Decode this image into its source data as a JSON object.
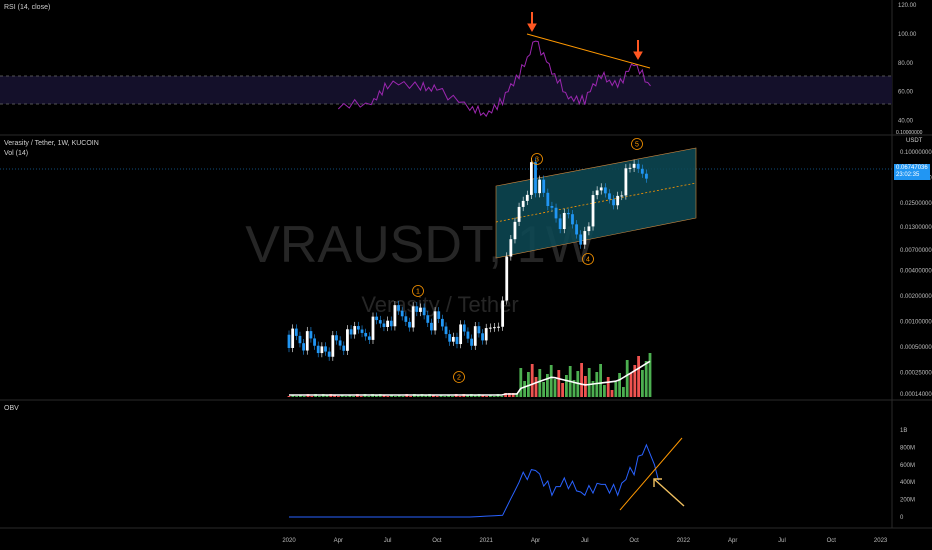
{
  "rsi_panel": {
    "label": "RSI (14, close)",
    "ticks": [
      "120.00",
      "100.00",
      "80.00",
      "60.00",
      "40.00"
    ]
  },
  "price_panel": {
    "title": "Verasity / Tether, 1W, KUCOIN",
    "vol_label": "Vol (14)",
    "watermark_symbol": "VRAUSDT, 1W",
    "watermark_name": "Verasity / Tether",
    "currency": "USDT",
    "top_tick": "0.10000000",
    "ticks": [
      "0.10000000",
      "0.05000000",
      "0.02500000",
      "0.01300000",
      "0.00700000",
      "0.00400000",
      "0.00200000",
      "0.00100000",
      "0.00050000",
      "0.00025000",
      "0.00014000"
    ],
    "price_tag": {
      "value": "0.06747036",
      "time": "23:02:35"
    },
    "wave_labels": [
      "1",
      "2",
      "3",
      "4",
      "5"
    ]
  },
  "obv_panel": {
    "label": "OBV",
    "ticks": [
      "1B",
      "800M",
      "600M",
      "400M",
      "200M",
      "0"
    ]
  },
  "time_axis": [
    "2020",
    "Apr",
    "Jul",
    "Oct",
    "2021",
    "Apr",
    "Jul",
    "Oct",
    "2022",
    "Apr",
    "Jul",
    "Oct",
    "2023"
  ],
  "colors": {
    "up": "#ffffff",
    "down": "#2196f3",
    "rsi": "#9c27b0",
    "obv": "#2962ff",
    "vol_up": "#4caf50",
    "vol_down": "#ef5350",
    "channel": "#0e4d5c",
    "annotation": "#ff9800",
    "arrow": "#ff5722"
  },
  "chart_data": [
    {
      "type": "line",
      "name": "RSI",
      "x": [
        "2020-04",
        "2020-06",
        "2020-07",
        "2020-09",
        "2020-10",
        "2020-12",
        "2021-01",
        "2021-02",
        "2021-03",
        "2021-04",
        "2021-05",
        "2021-06",
        "2021-07",
        "2021-08",
        "2021-09",
        "2021-10",
        "2021-11"
      ],
      "values": [
        48,
        53,
        66,
        62,
        64,
        47,
        45,
        55,
        70,
        98,
        72,
        57,
        55,
        70,
        66,
        78,
        64
      ],
      "ylim": [
        30,
        120
      ]
    },
    {
      "type": "candlestick",
      "name": "VRAUSDT",
      "log_scale": true,
      "x": [
        "2020-01",
        "2020-03",
        "2020-05",
        "2020-07",
        "2020-09",
        "2020-11",
        "2021-01",
        "2021-02",
        "2021-03",
        "2021-04",
        "2021-05",
        "2021-06",
        "2021-07",
        "2021-08",
        "2021-09",
        "2021-10",
        "2021-11"
      ],
      "close": [
        0.0007,
        0.0005,
        0.0006,
        0.0011,
        0.0012,
        0.0008,
        0.0006,
        0.0012,
        0.015,
        0.055,
        0.025,
        0.015,
        0.0095,
        0.03,
        0.03,
        0.06,
        0.067
      ]
    },
    {
      "type": "line",
      "name": "OBV",
      "x": [
        "2020-01",
        "2020-06",
        "2020-12",
        "2021-02",
        "2021-03",
        "2021-04",
        "2021-05",
        "2021-06",
        "2021-07",
        "2021-08",
        "2021-09",
        "2021-10",
        "2021-11"
      ],
      "values": [
        0,
        0,
        0,
        20000000,
        400000000,
        560000000,
        300000000,
        400000000,
        250000000,
        400000000,
        300000000,
        560000000,
        920000000
      ],
      "ylim": [
        -50000000,
        1000000000
      ]
    }
  ]
}
